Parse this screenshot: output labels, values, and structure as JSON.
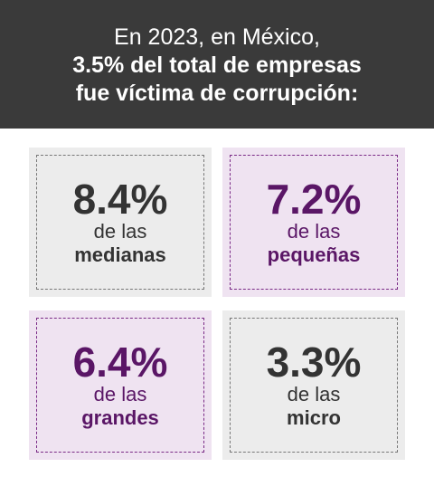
{
  "header": {
    "line1": "En 2023, en México,",
    "line2": "3.5% del total de empresas",
    "line3": "fue víctima de corrupción:"
  },
  "cards": [
    {
      "pct": "8.4%",
      "sub": "de las",
      "size": "medianas",
      "theme": "gray"
    },
    {
      "pct": "7.2%",
      "sub": "de las",
      "size": "pequeñas",
      "theme": "purple"
    },
    {
      "pct": "6.4%",
      "sub": "de las",
      "size": "grandes",
      "theme": "purple"
    },
    {
      "pct": "3.3%",
      "sub": "de las",
      "size": "micro",
      "theme": "gray"
    }
  ],
  "colors": {
    "header_bg": "#3a3a3a",
    "gray_card_bg": "#ececec",
    "purple_card_bg": "#efe3f1",
    "purple_text": "#5a1666",
    "gray_text": "#333333"
  }
}
